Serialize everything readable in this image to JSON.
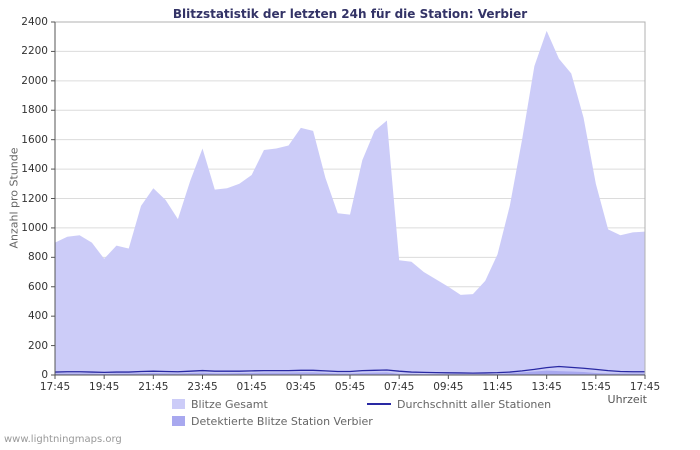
{
  "page": {
    "title": "Blitzstatistik der letzten 24h für die Station: Verbier",
    "watermark": "www.lightningmaps.org"
  },
  "axes": {
    "ylabel": "Anzahl pro Stunde",
    "xlabel": "Uhrzeit"
  },
  "legend": {
    "items": [
      {
        "label": "Blitze Gesamt",
        "swatch": "area",
        "color": "#ccccf8"
      },
      {
        "label": "Detektierte Blitze Station Verbier",
        "swatch": "area",
        "color": "#a8a8ef"
      },
      {
        "label": "Durchschnitt aller Stationen",
        "swatch": "line",
        "color": "#2929a3"
      }
    ]
  },
  "chart_data": {
    "type": "area",
    "title": "Blitzstatistik der letzten 24h für die Station: Verbier",
    "xlabel": "Uhrzeit",
    "ylabel": "Anzahl pro Stunde",
    "ylim": [
      0,
      2400
    ],
    "ytick_step": 200,
    "grid": true,
    "legend_position": "bottom",
    "x_ticks": [
      "17:45",
      "19:45",
      "21:45",
      "23:45",
      "01:45",
      "03:45",
      "05:45",
      "07:45",
      "09:45",
      "11:45",
      "13:45",
      "15:45",
      "17:45"
    ],
    "sample_interval_minutes": 30,
    "series": [
      {
        "name": "Blitze Gesamt",
        "type": "area",
        "color": "#ccccf8",
        "values": [
          900,
          940,
          950,
          900,
          790,
          880,
          860,
          1150,
          1270,
          1190,
          1060,
          1320,
          1540,
          1260,
          1270,
          1300,
          1360,
          1530,
          1540,
          1560,
          1680,
          1660,
          1340,
          1100,
          1090,
          1460,
          1660,
          1730,
          780,
          770,
          700,
          650,
          600,
          545,
          550,
          640,
          820,
          1150,
          1600,
          2100,
          2340,
          2150,
          2050,
          1750,
          1300,
          990,
          950,
          970,
          975
        ]
      },
      {
        "name": "Detektierte Blitze Station Verbier",
        "type": "area",
        "color": "#a8a8ef",
        "values": [
          10,
          10,
          10,
          10,
          8,
          10,
          10,
          12,
          14,
          12,
          10,
          14,
          16,
          12,
          12,
          14,
          14,
          16,
          16,
          16,
          18,
          18,
          14,
          10,
          10,
          14,
          16,
          18,
          8,
          8,
          6,
          6,
          5,
          5,
          5,
          6,
          8,
          12,
          18,
          24,
          30,
          26,
          24,
          20,
          14,
          10,
          10,
          10,
          10
        ]
      },
      {
        "name": "Durchschnitt aller Stationen",
        "type": "line",
        "color": "#2929a3",
        "values": [
          20,
          22,
          22,
          20,
          18,
          20,
          20,
          24,
          26,
          24,
          22,
          26,
          30,
          26,
          26,
          26,
          28,
          30,
          30,
          30,
          32,
          32,
          28,
          24,
          24,
          30,
          32,
          34,
          26,
          20,
          18,
          16,
          15,
          14,
          13,
          14,
          16,
          20,
          28,
          38,
          50,
          58,
          52,
          46,
          38,
          30,
          24,
          22,
          22
        ]
      }
    ]
  }
}
